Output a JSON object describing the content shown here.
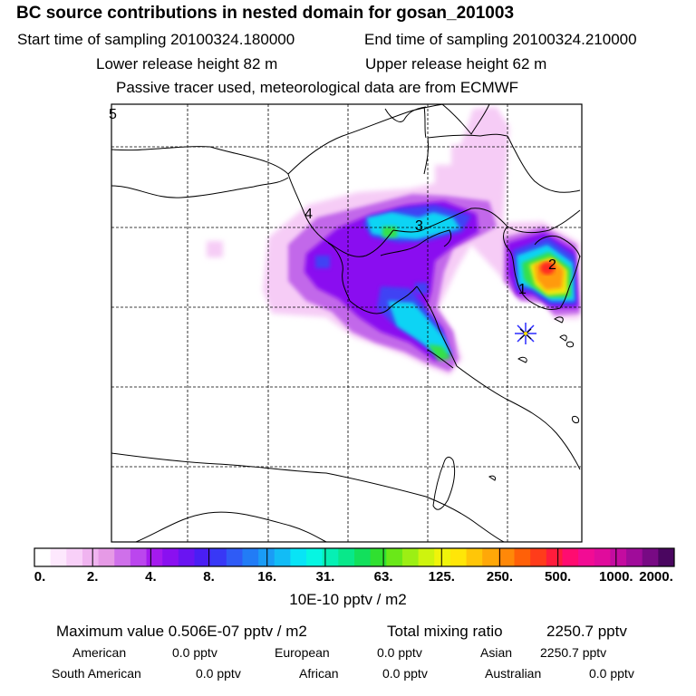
{
  "header": {
    "title": "BC  source contributions in nested domain for gosan_201003",
    "start_label": "Start time of sampling 20100324.180000",
    "end_label": "End time of sampling 20100324.210000",
    "lower_label": "Lower release height   82 m",
    "upper_label": "Upper release height   62 m",
    "note": "Passive tracer used, meteorological data are from ECMWF"
  },
  "map": {
    "source_labels": [
      "1",
      "2",
      "3",
      "4",
      "5"
    ],
    "receptor": "gosan-receptor"
  },
  "colorbar": {
    "colors": [
      "#ffffff",
      "#fde8fd",
      "#f8d0f8",
      "#f0b4f0",
      "#e69ae6",
      "#cf70ea",
      "#bb46ee",
      "#a51aee",
      "#8a10f0",
      "#6a14f2",
      "#4a1ef4",
      "#3838f6",
      "#2f5bf6",
      "#227cf6",
      "#1a9cf6",
      "#12bcf6",
      "#08e4f6",
      "#06f6e2",
      "#06f0b4",
      "#08e88a",
      "#12e05c",
      "#30e030",
      "#6ae818",
      "#9cef14",
      "#cef40e",
      "#f0f40a",
      "#ffe608",
      "#ffc608",
      "#ffa808",
      "#ff8808",
      "#ff6008",
      "#ff3c1a",
      "#ff1c3c",
      "#ff0c70",
      "#f20c94",
      "#e00c9c",
      "#c40ca0",
      "#a00c9a",
      "#780a84",
      "#4a0660"
    ],
    "labels": [
      "0.",
      "2.",
      "4.",
      "8.",
      "16.",
      "31.",
      "63.",
      "125.",
      "250.",
      "500.",
      "1000.",
      "2000."
    ],
    "units": "10E-10 pptv / m2"
  },
  "summary": {
    "max_label": "Maximum value  0.506E-07 pptv / m2",
    "total_label": "Total mixing ratio",
    "total_value": "2250.7 pptv",
    "regions": [
      {
        "name": "American",
        "value": "0.0 pptv"
      },
      {
        "name": "European",
        "value": "0.0 pptv"
      },
      {
        "name": "Asian",
        "value": "2250.7 pptv"
      },
      {
        "name": "South American",
        "value": "0.0 pptv"
      },
      {
        "name": "African",
        "value": "0.0 pptv"
      },
      {
        "name": "Australian",
        "value": "0.0 pptv"
      }
    ]
  }
}
